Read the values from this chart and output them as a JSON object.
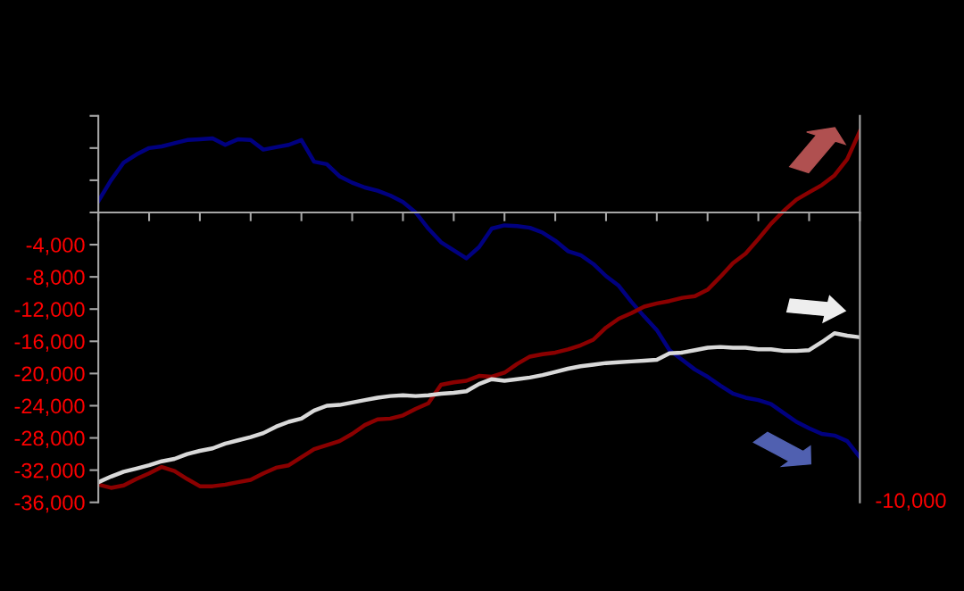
{
  "chart_data": {
    "type": "line",
    "categories": [
      null,
      null,
      null,
      null,
      null,
      null,
      null,
      null,
      null,
      null,
      null,
      null,
      null,
      null,
      null,
      null,
      null,
      null,
      null,
      null,
      null,
      null,
      null,
      null,
      null,
      null,
      null,
      null,
      null,
      null,
      null,
      null,
      null,
      null,
      null,
      null,
      null,
      null,
      null,
      null,
      null,
      null,
      null,
      null,
      null,
      null,
      null,
      null,
      null,
      null,
      null,
      null,
      null,
      null,
      null,
      null,
      null,
      null,
      null,
      null,
      null
    ],
    "series": [
      {
        "color": "#000080",
        "values": [
          1400,
          4000,
          6200,
          7200,
          8000,
          8200,
          8600,
          9000,
          9100,
          9200,
          8400,
          9100,
          9000,
          7800,
          8100,
          8400,
          9000,
          6300,
          6000,
          4500,
          3700,
          3100,
          2700,
          2100,
          1300,
          0,
          -2000,
          -3700,
          -4700,
          -5700,
          -4300,
          -2000,
          -1600,
          -1700,
          -1900,
          -2500,
          -3500,
          -4800,
          -5300,
          -6400,
          -7900,
          -9100,
          -11100,
          -12900,
          -14600,
          -17100,
          -18300,
          -19500,
          -20400,
          -21500,
          -22500,
          -23000,
          -23300,
          -23800,
          -24900,
          -26000,
          -26800,
          -27500,
          -27700,
          -28400,
          -30400
        ]
      },
      {
        "color": "#8b0000",
        "values": [
          -33800,
          -34200,
          -33900,
          -33100,
          -32400,
          -31600,
          -32100,
          -33100,
          -34000,
          -34000,
          -33800,
          -33500,
          -33200,
          -32400,
          -31700,
          -31400,
          -30400,
          -29400,
          -28900,
          -28400,
          -27500,
          -26400,
          -25700,
          -25600,
          -25200,
          -24400,
          -23700,
          -21400,
          -21100,
          -20900,
          -20300,
          -20400,
          -19900,
          -18800,
          -17900,
          -17600,
          -17400,
          -17000,
          -16500,
          -15800,
          -14300,
          -13200,
          -12500,
          -11700,
          -11300,
          -11000,
          -10600,
          -10400,
          -9600,
          -8000,
          -6300,
          -5100,
          -3300,
          -1400,
          200,
          1600,
          2500,
          3400,
          4600,
          6600,
          10100
        ]
      },
      {
        "color": "#d9d9d9",
        "values": [
          -33500,
          -32800,
          -32200,
          -31800,
          -31400,
          -30900,
          -30600,
          -30000,
          -29600,
          -29300,
          -28700,
          -28300,
          -27900,
          -27400,
          -26600,
          -26000,
          -25600,
          -24600,
          -24000,
          -23900,
          -23600,
          -23300,
          -23000,
          -22800,
          -22700,
          -22800,
          -22700,
          -22500,
          -22400,
          -22200,
          -21300,
          -20700,
          -20900,
          -20700,
          -20500,
          -20200,
          -19800,
          -19400,
          -19100,
          -18900,
          -18700,
          -18600,
          -18500,
          -18400,
          -18300,
          -17500,
          -17400,
          -17100,
          -16800,
          -16700,
          -16800,
          -16800,
          -17000,
          -17000,
          -17200,
          -17200,
          -17100,
          -16100,
          -15000,
          -15300,
          -15500
        ]
      }
    ],
    "ylim": [
      -36000,
      12000
    ],
    "yticks": [
      {
        "value": 12000,
        "label": null
      },
      {
        "value": 8000,
        "label": null
      },
      {
        "value": 4000,
        "label": null
      },
      {
        "value": 0,
        "label": null
      },
      {
        "value": -4000,
        "label": "-4,000"
      },
      {
        "value": -8000,
        "label": "-8,000"
      },
      {
        "value": -12000,
        "label": "-12,000"
      },
      {
        "value": -16000,
        "label": "-16,000"
      },
      {
        "value": -20000,
        "label": "-20,000"
      },
      {
        "value": -24000,
        "label": "-24,000"
      },
      {
        "value": -28000,
        "label": "-28,000"
      },
      {
        "value": -32000,
        "label": "-32,000"
      },
      {
        "value": -36000,
        "label": "-36,000"
      }
    ],
    "annotations": [
      "-10,000"
    ],
    "legend": false,
    "marker": "none",
    "line_style": "solid"
  }
}
